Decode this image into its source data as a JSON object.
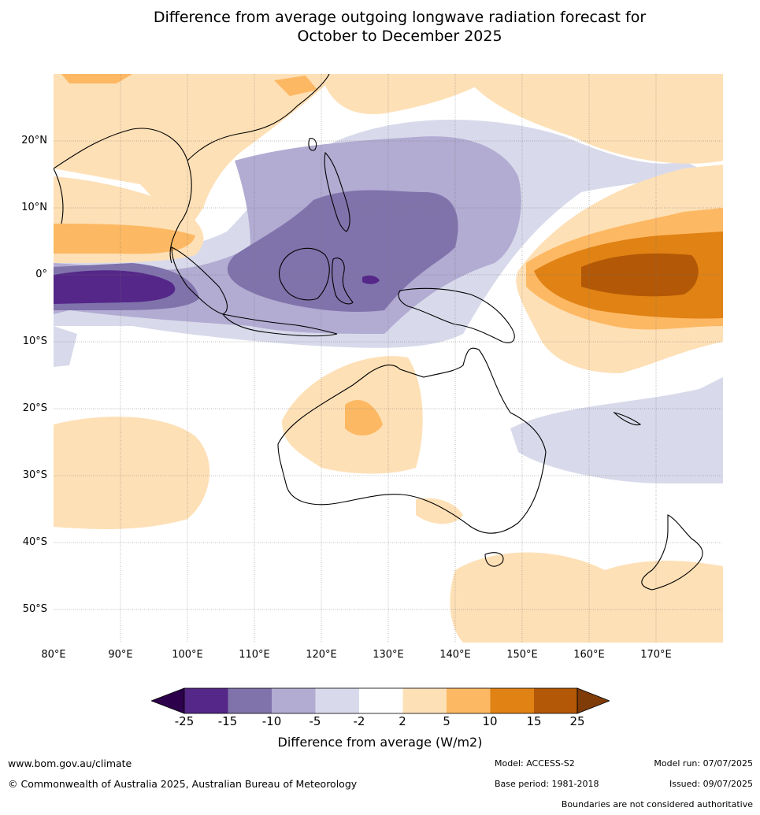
{
  "title_line1": "Difference from average outgoing longwave radiation forecast for",
  "title_line2": "October to December 2025",
  "lat_labels": [
    "20°N",
    "10°N",
    "0°",
    "10°S",
    "20°S",
    "30°S",
    "40°S",
    "50°S"
  ],
  "lon_labels": [
    "80°E",
    "90°E",
    "100°E",
    "110°E",
    "120°E",
    "130°E",
    "140°E",
    "150°E",
    "160°E",
    "170°E"
  ],
  "colorbar": {
    "ticks": [
      "-25",
      "-15",
      "-10",
      "-5",
      "-2",
      "2",
      "5",
      "10",
      "15",
      "25"
    ],
    "colors": [
      "#2d004b",
      "#542788",
      "#8073ac",
      "#b2abd2",
      "#d8daeb",
      "#ffffff",
      "#fee0b6",
      "#fdb863",
      "#e08214",
      "#b35806",
      "#7f3b08"
    ],
    "title": "Difference from average (W/m2)"
  },
  "footer": {
    "website": "www.bom.gov.au/climate",
    "copyright": "© Commonwealth of Australia 2025, Australian Bureau of Meteorology",
    "model": "Model: ACCESS-S2",
    "base_period": "Base period: 1981-2018",
    "model_run": "Model run: 07/07/2025",
    "issued": "Issued: 09/07/2025",
    "disclaimer": "Boundaries are not considered authoritative"
  }
}
